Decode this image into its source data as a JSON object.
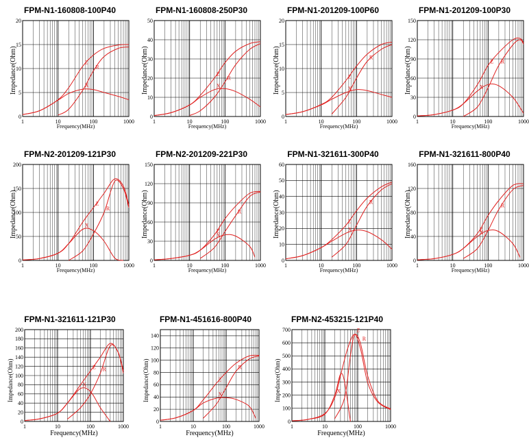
{
  "chart_data": [
    {
      "type": "line",
      "title": "FPM-N1-160808-100P40",
      "ylabel": "Impedance(Ohm)",
      "xlabel": "Frequency(MHz)",
      "xscale": "log",
      "xlim": [
        1,
        1000
      ],
      "ylim": [
        0,
        20
      ],
      "yticks": [
        "0",
        "5",
        "10",
        "15",
        "20"
      ],
      "xticks": [
        "1",
        "10",
        "100",
        "1000"
      ],
      "series": [
        {
          "name": "Z",
          "x": [
            1,
            3,
            10,
            20,
            50,
            100,
            200,
            500,
            1000
          ],
          "values": [
            0.4,
            1.2,
            3.5,
            6,
            10.5,
            12.8,
            14.2,
            14.9,
            15
          ]
        },
        {
          "name": "X",
          "x": [
            1,
            3,
            10,
            20,
            50,
            100,
            200,
            500,
            1000
          ],
          "values": [
            0.4,
            1.2,
            3.4,
            4.8,
            5.7,
            5.6,
            5,
            4.2,
            3.5
          ]
        },
        {
          "name": "R",
          "x": [
            10,
            20,
            50,
            100,
            200,
            500,
            1000
          ],
          "values": [
            0.3,
            1.5,
            5.5,
            9.5,
            12.5,
            14.2,
            14.5
          ]
        }
      ]
    },
    {
      "type": "line",
      "title": "FPM-N1-160808-250P30",
      "ylabel": "Impedance(Ohm)",
      "xlabel": "Frequency(MHz)",
      "xscale": "log",
      "xlim": [
        1,
        1000
      ],
      "ylim": [
        0,
        50
      ],
      "yticks": [
        "0",
        "10",
        "20",
        "30",
        "40",
        "50"
      ],
      "xticks": [
        "1",
        "10",
        "100",
        "1000"
      ],
      "series": [
        {
          "name": "Z",
          "x": [
            1,
            3,
            10,
            20,
            50,
            100,
            200,
            500,
            1000
          ],
          "values": [
            0.5,
            2,
            6,
            11,
            20,
            28,
            34,
            38,
            39
          ]
        },
        {
          "name": "X",
          "x": [
            1,
            3,
            10,
            20,
            50,
            100,
            200,
            500,
            1000
          ],
          "values": [
            0.5,
            2,
            6,
            10,
            14,
            14.5,
            13,
            9,
            5
          ]
        },
        {
          "name": "R",
          "x": [
            10,
            20,
            50,
            100,
            200,
            500,
            1000
          ],
          "values": [
            0.5,
            3,
            10,
            18,
            27,
            35,
            38
          ]
        }
      ]
    },
    {
      "type": "line",
      "title": "FPM-N1-201209-100P60",
      "ylabel": "Impedance(Ohm)",
      "xlabel": "Frequency(MHz)",
      "xscale": "log",
      "xlim": [
        1,
        1000
      ],
      "ylim": [
        0,
        20
      ],
      "yticks": [
        "0",
        "5",
        "10",
        "15",
        "20"
      ],
      "xticks": [
        "1",
        "10",
        "100",
        "1000"
      ],
      "series": [
        {
          "name": "Z",
          "x": [
            1,
            3,
            10,
            20,
            50,
            100,
            200,
            500,
            1000
          ],
          "values": [
            0.4,
            1,
            2.5,
            4,
            7.5,
            10.5,
            13,
            15,
            15.5
          ]
        },
        {
          "name": "X",
          "x": [
            1,
            3,
            10,
            20,
            50,
            100,
            200,
            500,
            1000
          ],
          "values": [
            0.4,
            1,
            2.4,
            3.6,
            5,
            5.6,
            5.4,
            4.6,
            4
          ]
        },
        {
          "name": "R",
          "x": [
            20,
            50,
            100,
            200,
            500,
            1000
          ],
          "values": [
            0.5,
            4,
            8,
            11.5,
            14,
            15
          ]
        }
      ]
    },
    {
      "type": "line",
      "title": "FPM-N1-201209-100P30",
      "ylabel": "Impedance(Ohm)",
      "xlabel": "Frequency(MHz)",
      "xscale": "log",
      "xlim": [
        1,
        1000
      ],
      "ylim": [
        0,
        150
      ],
      "yticks": [
        "0",
        "30",
        "60",
        "90",
        "120",
        "150"
      ],
      "xticks": [
        "1",
        "10",
        "100",
        "1000"
      ],
      "series": [
        {
          "name": "Z",
          "x": [
            1,
            3,
            10,
            20,
            50,
            100,
            200,
            500,
            800,
            1000
          ],
          "values": [
            1,
            3,
            10,
            20,
            50,
            80,
            100,
            120,
            122,
            115
          ]
        },
        {
          "name": "X",
          "x": [
            1,
            3,
            10,
            20,
            50,
            100,
            200,
            500,
            1000
          ],
          "values": [
            1,
            3,
            10,
            20,
            40,
            50,
            48,
            30,
            5
          ]
        },
        {
          "name": "R",
          "x": [
            20,
            50,
            100,
            200,
            500,
            800,
            1000
          ],
          "values": [
            0,
            15,
            45,
            80,
            112,
            120,
            113
          ]
        }
      ]
    },
    {
      "type": "line",
      "title": "FPM-N2-201209-121P30",
      "ylabel": "Impedance(Ohm)",
      "xlabel": "Frequency(MHz)",
      "xscale": "log",
      "xlim": [
        1,
        1000
      ],
      "ylim": [
        0,
        200
      ],
      "yticks": [
        "0",
        "50",
        "100",
        "150",
        "200"
      ],
      "xticks": [
        "1",
        "10",
        "100",
        "1000"
      ],
      "series": [
        {
          "name": "Z",
          "x": [
            1,
            3,
            10,
            20,
            50,
            100,
            200,
            400,
            700,
            1000
          ],
          "values": [
            1,
            4,
            15,
            35,
            80,
            110,
            140,
            170,
            155,
            115
          ]
        },
        {
          "name": "X",
          "x": [
            1,
            3,
            10,
            20,
            50,
            100,
            200,
            400,
            700
          ],
          "values": [
            1,
            4,
            15,
            35,
            65,
            62,
            40,
            5,
            0
          ]
        },
        {
          "name": "R",
          "x": [
            20,
            50,
            100,
            200,
            400,
            700,
            1000
          ],
          "values": [
            0,
            20,
            55,
            100,
            165,
            150,
            110
          ]
        }
      ]
    },
    {
      "type": "line",
      "title": "FPM-N2-201209-221P30",
      "ylabel": "Impedance(Ohm)",
      "xlabel": "Frequency(MHz)",
      "xscale": "log",
      "xlim": [
        1,
        1000
      ],
      "ylim": [
        0,
        150
      ],
      "yticks": [
        "0",
        "30",
        "60",
        "90",
        "120",
        "150"
      ],
      "xticks": [
        "1",
        "10",
        "100",
        "1000"
      ],
      "series": [
        {
          "name": "Z",
          "x": [
            1,
            3,
            10,
            20,
            50,
            100,
            200,
            500,
            1000
          ],
          "values": [
            1,
            3,
            8,
            16,
            40,
            65,
            85,
            105,
            108
          ]
        },
        {
          "name": "X",
          "x": [
            1,
            3,
            10,
            20,
            50,
            100,
            200,
            500,
            700
          ],
          "values": [
            1,
            3,
            8,
            16,
            33,
            40,
            38,
            22,
            5
          ]
        },
        {
          "name": "R",
          "x": [
            20,
            50,
            100,
            200,
            500,
            1000
          ],
          "values": [
            3,
            20,
            45,
            70,
            100,
            107
          ]
        }
      ]
    },
    {
      "type": "line",
      "title": "FPM-N1-321611-300P40",
      "ylabel": "Impedance(Ohm)",
      "xlabel": "Frequency(MHz)",
      "xscale": "log",
      "xlim": [
        1,
        1000
      ],
      "ylim": [
        0,
        60
      ],
      "yticks": [
        "0",
        "10",
        "20",
        "30",
        "40",
        "50",
        "60"
      ],
      "xticks": [
        "1",
        "10",
        "100",
        "1000"
      ],
      "series": [
        {
          "name": "Z",
          "x": [
            1,
            3,
            10,
            20,
            50,
            100,
            200,
            500,
            1000
          ],
          "values": [
            1,
            3,
            8,
            13,
            22,
            31,
            39,
            46,
            49
          ]
        },
        {
          "name": "X",
          "x": [
            1,
            3,
            10,
            20,
            50,
            100,
            200,
            500,
            1000
          ],
          "values": [
            1,
            3,
            8,
            12,
            17,
            19,
            18,
            13,
            7
          ]
        },
        {
          "name": "R",
          "x": [
            20,
            50,
            100,
            200,
            500,
            1000
          ],
          "values": [
            2,
            10,
            22,
            34,
            44,
            48
          ]
        }
      ]
    },
    {
      "type": "line",
      "title": "FPM-N1-321611-800P40",
      "ylabel": "Impedance(Ohm)",
      "xlabel": "Frequency(MHz)",
      "xscale": "log",
      "xlim": [
        1,
        1000
      ],
      "ylim": [
        0,
        160
      ],
      "yticks": [
        "0",
        "40",
        "80",
        "120",
        "160"
      ],
      "xticks": [
        "1",
        "10",
        "100",
        "1000"
      ],
      "series": [
        {
          "name": "Z",
          "x": [
            1,
            3,
            10,
            20,
            50,
            100,
            200,
            500,
            1000
          ],
          "values": [
            1,
            3,
            10,
            20,
            45,
            75,
            100,
            125,
            128
          ]
        },
        {
          "name": "X",
          "x": [
            1,
            3,
            10,
            20,
            50,
            100,
            200,
            500,
            800
          ],
          "values": [
            1,
            3,
            10,
            20,
            40,
            50,
            48,
            28,
            5
          ]
        },
        {
          "name": "R",
          "x": [
            20,
            50,
            100,
            200,
            500,
            1000
          ],
          "values": [
            3,
            20,
            50,
            85,
            118,
            125
          ]
        }
      ]
    },
    {
      "type": "line",
      "title": "FPM-N1-321611-121P30",
      "ylabel": "Impedance(Ohm)",
      "xlabel": "Frequency(MHz)",
      "xscale": "log",
      "xlim": [
        1,
        1000
      ],
      "ylim": [
        0,
        200
      ],
      "yticks": [
        "0",
        "20",
        "40",
        "60",
        "80",
        "100",
        "120",
        "140",
        "160",
        "180",
        "200"
      ],
      "xticks": [
        "1",
        "10",
        "100",
        "1000"
      ],
      "series": [
        {
          "name": "Z",
          "x": [
            1,
            3,
            10,
            20,
            50,
            100,
            200,
            400,
            700,
            1000
          ],
          "values": [
            2,
            6,
            18,
            40,
            80,
            110,
            140,
            170,
            150,
            110
          ]
        },
        {
          "name": "X",
          "x": [
            1,
            3,
            10,
            20,
            50,
            100,
            200,
            400
          ],
          "values": [
            2,
            6,
            18,
            40,
            72,
            65,
            30,
            0
          ]
        },
        {
          "name": "R",
          "x": [
            20,
            50,
            100,
            200,
            400,
            700,
            1000
          ],
          "values": [
            5,
            30,
            60,
            105,
            165,
            150,
            105
          ]
        }
      ]
    },
    {
      "type": "line",
      "title": "FPM-N1-451616-800P40",
      "ylabel": "Impedance(Ohm)",
      "xlabel": "Frequency(MHz)",
      "xscale": "log",
      "xlim": [
        1,
        1000
      ],
      "ylim": [
        0,
        150
      ],
      "yticks": [
        "0",
        "20",
        "40",
        "60",
        "80",
        "100",
        "120",
        "140"
      ],
      "xticks": [
        "1",
        "10",
        "100",
        "1000"
      ],
      "series": [
        {
          "name": "Z",
          "x": [
            1,
            3,
            10,
            20,
            50,
            100,
            200,
            500,
            1000
          ],
          "values": [
            2,
            6,
            18,
            35,
            62,
            80,
            95,
            107,
            108
          ]
        },
        {
          "name": "X",
          "x": [
            1,
            3,
            10,
            20,
            50,
            100,
            200,
            500,
            800
          ],
          "values": [
            2,
            6,
            18,
            30,
            38,
            39,
            36,
            25,
            5
          ]
        },
        {
          "name": "R",
          "x": [
            20,
            50,
            100,
            200,
            500,
            1000
          ],
          "values": [
            5,
            28,
            55,
            82,
            102,
            107
          ]
        }
      ]
    },
    {
      "type": "line",
      "title": "FPM-N2-453215-121P40",
      "ylabel": "Impedance(Ohm)",
      "xlabel": "Frequency(MHz)",
      "xscale": "log",
      "xlim": [
        1,
        1000
      ],
      "ylim": [
        0,
        700
      ],
      "yticks": [
        "0",
        "100",
        "200",
        "300",
        "400",
        "500",
        "600",
        "700"
      ],
      "xticks": [
        "1",
        "10",
        "100",
        "1000"
      ],
      "series": [
        {
          "name": "Z",
          "x": [
            1,
            3,
            10,
            20,
            30,
            50,
            80,
            120,
            200,
            400,
            1000
          ],
          "values": [
            5,
            15,
            60,
            180,
            350,
            560,
            665,
            560,
            300,
            150,
            90
          ]
        },
        {
          "name": "X",
          "x": [
            1,
            3,
            10,
            20,
            30,
            40,
            60
          ],
          "values": [
            5,
            15,
            55,
            200,
            360,
            300,
            0
          ]
        },
        {
          "name": "R",
          "x": [
            20,
            40,
            60,
            80,
            120,
            200,
            400,
            1000
          ],
          "values": [
            20,
            180,
            500,
            660,
            600,
            350,
            160,
            95
          ]
        }
      ]
    }
  ]
}
